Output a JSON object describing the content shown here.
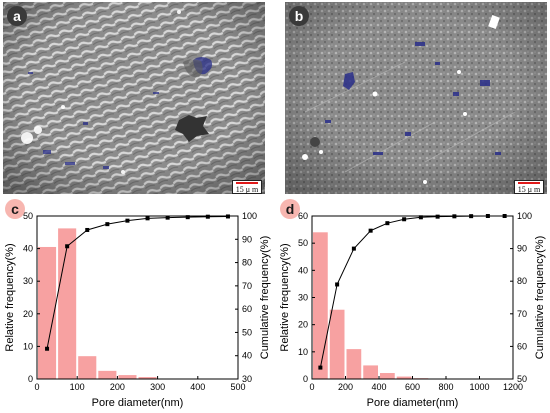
{
  "panels": {
    "a": {
      "label": "a",
      "scale_text": "15 μ m"
    },
    "b": {
      "label": "b",
      "scale_text": "15 μ m"
    }
  },
  "colors": {
    "bar": "#f7a1a1",
    "line": "#000000",
    "pore_blue": "#2a2f8a"
  },
  "chart_data": [
    {
      "label": "c",
      "type": "bar",
      "x": [
        25,
        75,
        125,
        175,
        225,
        275
      ],
      "values": [
        40.5,
        46.2,
        7.0,
        2.5,
        1.2,
        0.6
      ],
      "bar_width": 50,
      "cumulative": {
        "x": [
          25,
          75,
          125,
          175,
          225,
          275,
          325,
          375,
          425,
          475
        ],
        "values": [
          43,
          87,
          94,
          96.5,
          98,
          99,
          99.3,
          99.5,
          99.7,
          99.8
        ]
      },
      "xlabel": "Pore diameter(nm)",
      "ylabel": "Relative frequency(%)",
      "y2label": "Cumulative frequency(%)",
      "xlim": [
        0,
        500
      ],
      "ylim": [
        0,
        50
      ],
      "y2lim": [
        30,
        100
      ],
      "xticks": [
        0,
        100,
        200,
        300,
        400,
        500
      ],
      "yticks": [
        0,
        10,
        20,
        30,
        40,
        50
      ],
      "y2ticks": [
        30,
        40,
        50,
        60,
        70,
        80,
        90,
        100
      ]
    },
    {
      "label": "d",
      "type": "bar",
      "x": [
        50,
        150,
        250,
        350,
        450,
        550,
        650,
        750,
        850,
        950,
        1050,
        1150
      ],
      "values": [
        54,
        25.5,
        11,
        5,
        2.2,
        0.9,
        0.3,
        0.1,
        0.05,
        0,
        0,
        0
      ],
      "bar_width": 100,
      "cumulative": {
        "x": [
          50,
          150,
          250,
          350,
          450,
          550,
          650,
          750,
          850,
          950,
          1050,
          1150
        ],
        "values": [
          53.5,
          79,
          90,
          95.5,
          97.8,
          99,
          99.6,
          99.8,
          99.9,
          99.95,
          100,
          100
        ]
      },
      "xlabel": "Pore diameter(nm)",
      "ylabel": "Relative frequency(%)",
      "y2label": "Cumulative frequency(%)",
      "xlim": [
        0,
        1200
      ],
      "ylim": [
        0,
        60
      ],
      "y2lim": [
        50,
        100
      ],
      "xticks": [
        0,
        200,
        400,
        600,
        800,
        1000,
        1200
      ],
      "yticks": [
        0,
        10,
        20,
        30,
        40,
        50,
        60
      ],
      "y2ticks": [
        50,
        60,
        70,
        80,
        90,
        100
      ]
    }
  ]
}
